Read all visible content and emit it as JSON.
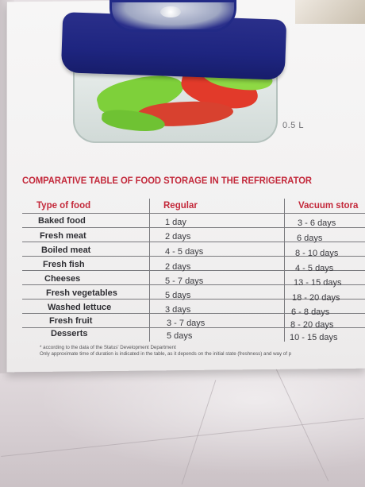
{
  "product": {
    "capacity_label": "0.5 L"
  },
  "table": {
    "title": "COMPARATIVE TABLE OF FOOD STORAGE IN THE REFRIGERATOR",
    "headers": [
      "Type of food",
      "Regular",
      "Vacuum stora"
    ],
    "rows": [
      {
        "food": "Baked food",
        "regular": "1 day",
        "vacuum": "3 - 6 days"
      },
      {
        "food": "Fresh meat",
        "regular": "2 days",
        "vacuum": "6 days"
      },
      {
        "food": "Boiled meat",
        "regular": "4 - 5 days",
        "vacuum": "8 - 10 days"
      },
      {
        "food": "Fresh fish",
        "regular": "2 days",
        "vacuum": "4 - 5 days"
      },
      {
        "food": "Cheeses",
        "regular": "5 - 7 days",
        "vacuum": "13 - 15 days"
      },
      {
        "food": "Fresh vegetables",
        "regular": "5 days",
        "vacuum": "18 - 20 days"
      },
      {
        "food": "Washed lettuce",
        "regular": "3 days",
        "vacuum": "6 - 8 days"
      },
      {
        "food": "Fresh fruit",
        "regular": "3 - 7 days",
        "vacuum": "8 - 20 days"
      },
      {
        "food": "Desserts",
        "regular": "5 days",
        "vacuum": "10 - 15 days"
      }
    ]
  },
  "footnotes": {
    "line1": "* according to the data of the Status' Development Department",
    "line2": "Only approximate time of duration is indicated in the table, as it depends on the initial state (freshness) and way of p"
  },
  "colors": {
    "heading_red": "#c3283a",
    "lid_blue": "#1e2580",
    "box_white": "#f4f3f3"
  }
}
